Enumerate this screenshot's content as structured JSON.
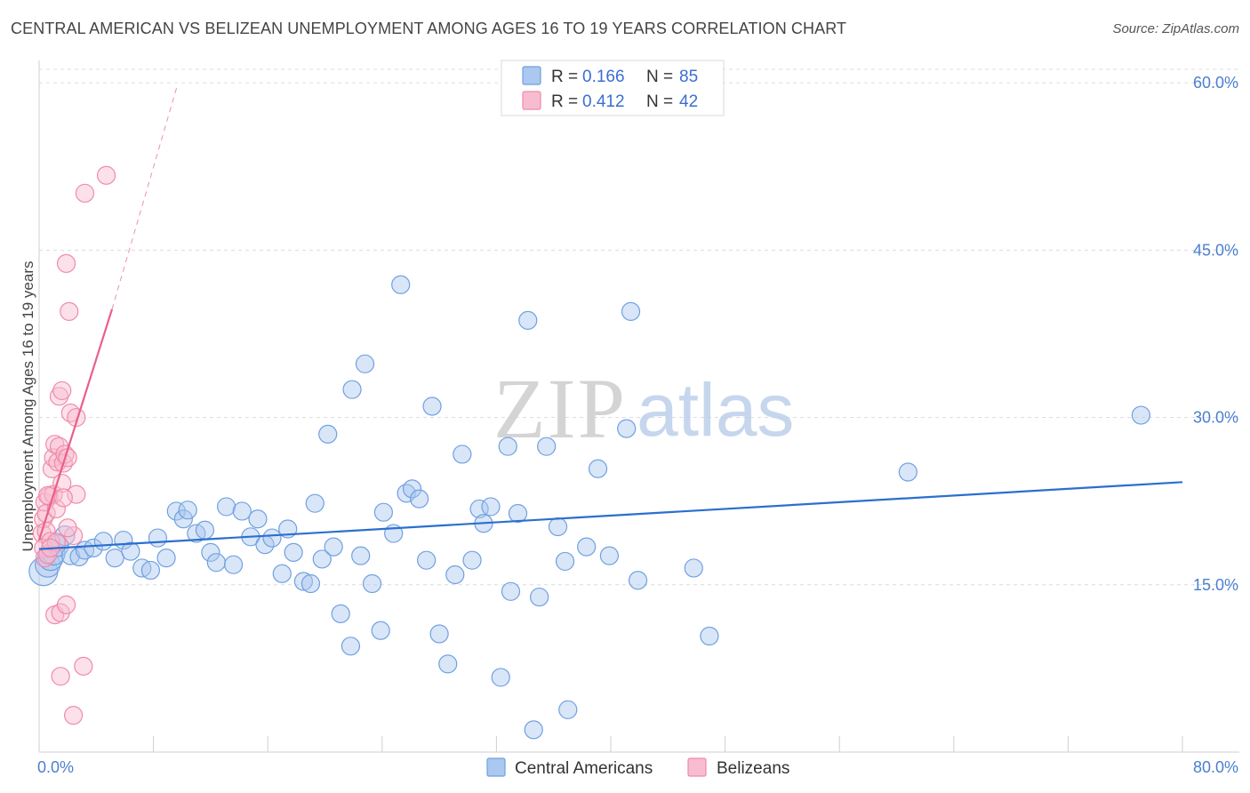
{
  "title": "CENTRAL AMERICAN VS BELIZEAN UNEMPLOYMENT AMONG AGES 16 TO 19 YEARS CORRELATION CHART",
  "source": "Source: ZipAtlas.com",
  "watermark": {
    "zip": "ZIP",
    "atlas": "atlas"
  },
  "chart_data": {
    "type": "scatter",
    "ylabel": "Unemployment Among Ages 16 to 19 years",
    "xlim": [
      0,
      80
    ],
    "ylim": [
      0,
      62
    ],
    "x_tick_labels": [
      "0.0%",
      "80.0%"
    ],
    "y_ticks": [
      15,
      30,
      45,
      60
    ],
    "y_tick_labels": [
      "15.0%",
      "30.0%",
      "45.0%",
      "60.0%"
    ],
    "grid": true,
    "legend": {
      "position": "top-center",
      "entries": [
        {
          "r_label": "R = ",
          "r_value": "0.166",
          "n_label": "N = ",
          "n_value": "85"
        },
        {
          "r_label": "R = ",
          "r_value": "0.412",
          "n_label": "N = ",
          "n_value": "42"
        }
      ]
    },
    "series": [
      {
        "name": "Central Americans",
        "color": "#6fa0e0",
        "fill": "#aac8f0",
        "trend_color": "#2b6fcf",
        "trend": {
          "x": [
            0,
            80
          ],
          "y": [
            18.2,
            24.2
          ]
        },
        "points": [
          [
            0.3,
            16.2
          ],
          [
            0.6,
            16.8
          ],
          [
            0.8,
            17.4
          ],
          [
            1.0,
            17.8
          ],
          [
            1.3,
            18.5
          ],
          [
            1.8,
            19.4
          ],
          [
            2.2,
            17.6
          ],
          [
            2.8,
            17.5
          ],
          [
            3.2,
            18.1
          ],
          [
            3.8,
            18.3
          ],
          [
            4.5,
            18.9
          ],
          [
            5.3,
            17.4
          ],
          [
            5.9,
            19.0
          ],
          [
            6.4,
            18.0
          ],
          [
            7.2,
            16.5
          ],
          [
            7.8,
            16.3
          ],
          [
            8.3,
            19.2
          ],
          [
            8.9,
            17.4
          ],
          [
            9.6,
            21.6
          ],
          [
            10.1,
            20.9
          ],
          [
            10.4,
            21.7
          ],
          [
            11.0,
            19.6
          ],
          [
            11.6,
            19.9
          ],
          [
            12.0,
            17.9
          ],
          [
            12.4,
            17.0
          ],
          [
            13.1,
            22.0
          ],
          [
            13.6,
            16.8
          ],
          [
            14.2,
            21.6
          ],
          [
            14.8,
            19.3
          ],
          [
            15.3,
            20.9
          ],
          [
            15.8,
            18.6
          ],
          [
            16.3,
            19.2
          ],
          [
            17.0,
            16.0
          ],
          [
            17.4,
            20.0
          ],
          [
            17.8,
            17.9
          ],
          [
            18.5,
            15.3
          ],
          [
            19.0,
            15.1
          ],
          [
            19.3,
            22.3
          ],
          [
            19.8,
            17.3
          ],
          [
            20.2,
            28.5
          ],
          [
            20.6,
            18.4
          ],
          [
            21.1,
            12.4
          ],
          [
            21.8,
            9.5
          ],
          [
            21.9,
            32.5
          ],
          [
            22.5,
            17.6
          ],
          [
            22.8,
            34.8
          ],
          [
            23.3,
            15.1
          ],
          [
            23.9,
            10.9
          ],
          [
            24.1,
            21.5
          ],
          [
            24.8,
            19.6
          ],
          [
            25.3,
            41.9
          ],
          [
            25.7,
            23.2
          ],
          [
            26.1,
            23.6
          ],
          [
            26.6,
            22.7
          ],
          [
            27.1,
            17.2
          ],
          [
            27.5,
            31.0
          ],
          [
            28.0,
            10.6
          ],
          [
            28.6,
            7.9
          ],
          [
            29.1,
            15.9
          ],
          [
            29.6,
            26.7
          ],
          [
            30.3,
            17.2
          ],
          [
            30.8,
            21.8
          ],
          [
            31.1,
            20.5
          ],
          [
            31.6,
            22.0
          ],
          [
            32.3,
            6.7
          ],
          [
            32.8,
            27.4
          ],
          [
            33.0,
            14.4
          ],
          [
            33.5,
            21.4
          ],
          [
            34.2,
            38.7
          ],
          [
            34.6,
            2.0
          ],
          [
            35.0,
            13.9
          ],
          [
            35.5,
            27.4
          ],
          [
            36.3,
            20.2
          ],
          [
            36.8,
            17.1
          ],
          [
            37.0,
            3.8
          ],
          [
            38.3,
            18.4
          ],
          [
            39.1,
            25.4
          ],
          [
            39.9,
            17.6
          ],
          [
            41.1,
            29.0
          ],
          [
            41.4,
            39.5
          ],
          [
            41.9,
            15.4
          ],
          [
            45.8,
            16.5
          ],
          [
            46.9,
            10.4
          ],
          [
            60.8,
            25.1
          ],
          [
            77.1,
            30.2
          ]
        ],
        "radii": [
          16,
          14,
          14,
          13,
          12,
          11,
          10,
          10,
          10,
          10,
          10,
          10,
          10,
          10,
          10,
          10,
          10,
          10,
          10,
          10,
          10,
          10,
          10,
          10,
          10,
          10,
          10,
          10,
          10,
          10,
          10,
          10,
          10,
          10,
          10,
          10,
          10,
          10,
          10,
          10,
          10,
          10,
          10,
          10,
          10,
          10,
          10,
          10,
          10,
          10,
          10,
          10,
          10,
          10,
          10,
          10,
          10,
          10,
          10,
          10,
          10,
          10,
          10,
          10,
          10,
          10,
          10,
          10,
          10,
          10,
          10,
          10,
          10,
          10,
          10,
          10,
          10,
          10,
          10,
          10,
          10,
          10,
          10,
          10,
          10
        ]
      },
      {
        "name": "Belizeans",
        "color": "#f08aaa",
        "fill": "#f8bcd0",
        "trend_color": "#e8608a",
        "trend": {
          "x": [
            0,
            5.1
          ],
          "y": [
            19.0,
            39.7
          ]
        },
        "trend_dashed": {
          "x": [
            5.1,
            9.7
          ],
          "y": [
            39.7,
            59.9
          ]
        },
        "points": [
          [
            0.2,
            19.6
          ],
          [
            0.3,
            18.3
          ],
          [
            0.3,
            20.9
          ],
          [
            0.4,
            17.4
          ],
          [
            0.4,
            22.4
          ],
          [
            0.5,
            19.8
          ],
          [
            0.5,
            21.4
          ],
          [
            0.6,
            17.7
          ],
          [
            0.7,
            22.9
          ],
          [
            0.8,
            18.9
          ],
          [
            0.9,
            25.4
          ],
          [
            1.0,
            23.1
          ],
          [
            1.0,
            26.4
          ],
          [
            1.1,
            12.3
          ],
          [
            1.1,
            27.6
          ],
          [
            1.2,
            18.8
          ],
          [
            1.3,
            26.0
          ],
          [
            1.4,
            31.9
          ],
          [
            1.4,
            27.4
          ],
          [
            1.5,
            12.5
          ],
          [
            1.5,
            6.8
          ],
          [
            1.6,
            32.4
          ],
          [
            1.6,
            24.1
          ],
          [
            1.7,
            25.9
          ],
          [
            1.8,
            26.7
          ],
          [
            1.9,
            13.2
          ],
          [
            1.9,
            43.8
          ],
          [
            2.0,
            26.4
          ],
          [
            2.1,
            39.5
          ],
          [
            2.2,
            30.4
          ],
          [
            2.4,
            19.4
          ],
          [
            2.4,
            3.3
          ],
          [
            2.6,
            23.1
          ],
          [
            2.6,
            30.0
          ],
          [
            3.1,
            7.7
          ],
          [
            3.2,
            50.1
          ],
          [
            4.7,
            51.7
          ],
          [
            0.8,
            18.3
          ],
          [
            1.2,
            21.8
          ],
          [
            0.6,
            23.0
          ],
          [
            1.7,
            22.8
          ],
          [
            2.0,
            20.1
          ]
        ],
        "radii": [
          10,
          10,
          10,
          10,
          10,
          10,
          10,
          10,
          10,
          10,
          10,
          10,
          10,
          10,
          10,
          10,
          10,
          10,
          10,
          10,
          10,
          10,
          10,
          10,
          10,
          10,
          10,
          10,
          10,
          10,
          10,
          10,
          10,
          10,
          10,
          10,
          10,
          10,
          10,
          10,
          10,
          10
        ]
      }
    ]
  }
}
